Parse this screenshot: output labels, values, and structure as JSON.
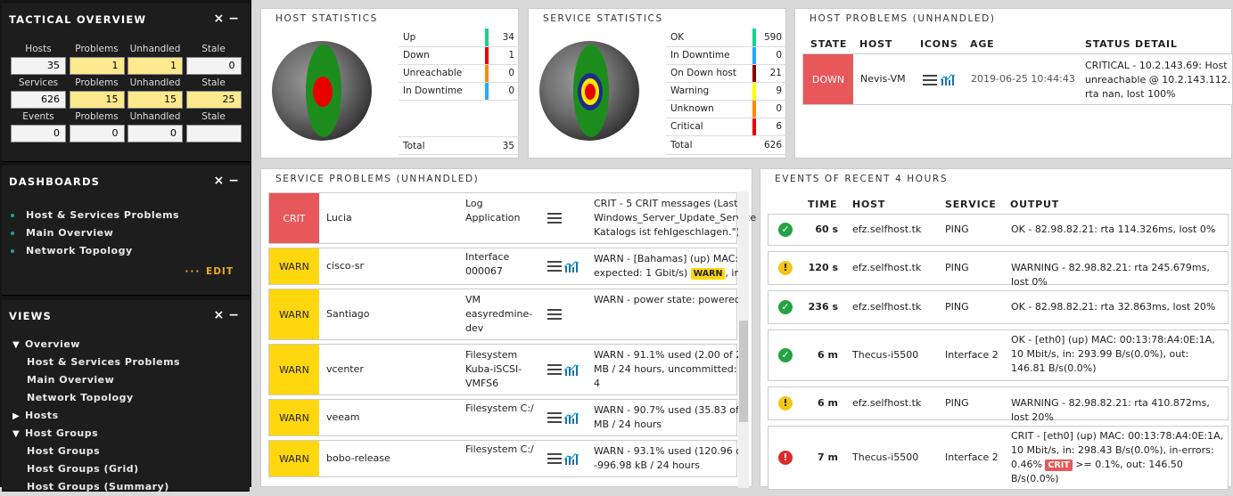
{
  "tactical": {
    "title": "TACTICAL OVERVIEW",
    "rows": [
      {
        "headers": [
          "Hosts",
          "Problems",
          "Unhandled",
          "Stale"
        ],
        "values": [
          "35",
          "1",
          "1",
          "0"
        ]
      },
      {
        "headers": [
          "Services",
          "Problems",
          "Unhandled",
          "Stale"
        ],
        "values": [
          "626",
          "15",
          "15",
          "25"
        ]
      },
      {
        "headers": [
          "Events",
          "Problems",
          "Unhandled",
          "Stale"
        ],
        "values": [
          "0",
          "0",
          "0",
          ""
        ]
      }
    ]
  },
  "dashboards": {
    "title": "DASHBOARDS",
    "items": [
      "Host & Services Problems",
      "Main Overview",
      "Network Topology"
    ],
    "edit": "EDIT"
  },
  "views": {
    "title": "VIEWS",
    "tree": [
      {
        "label": "Overview",
        "arrow": "▼",
        "indent": false
      },
      {
        "label": "Host & Services Problems",
        "arrow": "",
        "indent": true
      },
      {
        "label": "Main Overview",
        "arrow": "",
        "indent": true
      },
      {
        "label": "Network Topology",
        "arrow": "",
        "indent": true
      },
      {
        "label": "Hosts",
        "arrow": "▶",
        "indent": false
      },
      {
        "label": "Host Groups",
        "arrow": "▼",
        "indent": false
      },
      {
        "label": "Host Groups",
        "arrow": "",
        "indent": true
      },
      {
        "label": "Host Groups (Grid)",
        "arrow": "",
        "indent": true
      },
      {
        "label": "Host Groups (Summary)",
        "arrow": "",
        "indent": true
      }
    ]
  },
  "snapin_ctrl": {
    "close": "×",
    "minimize": "−"
  },
  "host_stats": {
    "title": "HOST STATISTICS",
    "rows": [
      {
        "label": "Up",
        "value": "34",
        "color": "#13d389"
      },
      {
        "label": "Down",
        "value": "1",
        "color": "#e80000"
      },
      {
        "label": "Unreachable",
        "value": "0",
        "color": "#ff8800"
      },
      {
        "label": "In Downtime",
        "value": "0",
        "color": "#23aaff"
      }
    ],
    "total_label": "Total",
    "total": "35"
  },
  "service_stats": {
    "title": "SERVICE STATISTICS",
    "rows": [
      {
        "label": "OK",
        "value": "590",
        "color": "#13d389"
      },
      {
        "label": "In Downtime",
        "value": "0",
        "color": "#23aaff"
      },
      {
        "label": "On Down host",
        "value": "21",
        "color": "#880000"
      },
      {
        "label": "Warning",
        "value": "9",
        "color": "#ffff00"
      },
      {
        "label": "Unknown",
        "value": "0",
        "color": "#ff8800"
      },
      {
        "label": "Critical",
        "value": "6",
        "color": "#e80000"
      }
    ],
    "total_label": "Total",
    "total": "626"
  },
  "host_problems": {
    "title": "HOST PROBLEMS (UNHANDLED)",
    "headers": [
      "STATE",
      "HOST",
      "ICONS",
      "AGE",
      "STATUS DETAIL"
    ],
    "rows": [
      {
        "state": "DOWN",
        "host": "Nevis-VM",
        "age": "2019-06-25 10:44:43",
        "detail": "CRITICAL - 10.2.143.69: Host unreachable @ 10.2.143.112. rta nan, lost 100%"
      }
    ]
  },
  "service_problems": {
    "title": "SERVICE PROBLEMS (UNHANDLED)",
    "rows": [
      {
        "state": "CRIT",
        "host": "Lucia",
        "service": "Log Application",
        "graph": false,
        "output": "CRIT - 5 CRIT messages (Last: Windows_Server_Update_Service Katalogs ist fehlgeschlagen.\")",
        "badge": ""
      },
      {
        "state": "WARN",
        "host": "cisco-sr",
        "service": "Interface 000067",
        "graph": true,
        "output": "WARN - [Bahamas] (up) MAC: expected: 1 Gbit/s)",
        "badge": "WARN",
        "tail": ", in"
      },
      {
        "state": "WARN",
        "host": "Santiago",
        "service": "VM easyredmine-dev",
        "graph": false,
        "output": "WARN - power state: powered",
        "badge": ""
      },
      {
        "state": "WARN",
        "host": "vcenter",
        "service": "Filesystem Kuba-iSCSI-VMFS6",
        "graph": true,
        "output": "WARN - 91.1% used (2.00 of 2 MB / 24 hours, uncommitted: 4",
        "badge": ""
      },
      {
        "state": "WARN",
        "host": "veeam",
        "service": "Filesystem C:/",
        "graph": true,
        "output": "WARN - 90.7% used (35.83 of MB / 24 hours",
        "badge": ""
      },
      {
        "state": "WARN",
        "host": "bobo-release",
        "service": "Filesystem C:/",
        "graph": true,
        "output": "WARN - 93.1% used (120.96 o -996.98 kB / 24 hours",
        "badge": ""
      }
    ]
  },
  "events": {
    "title": "EVENTS OF RECENT 4 HOURS",
    "headers": [
      "TIME",
      "HOST",
      "SERVICE",
      "OUTPUT"
    ],
    "rows": [
      {
        "status": "ok",
        "time": "60 s",
        "host": "efz.selfhost.tk",
        "service": "PING",
        "output": "OK - 82.98.82.21: rta 114.326ms, lost 0%"
      },
      {
        "status": "warn",
        "time": "120 s",
        "host": "efz.selfhost.tk",
        "service": "PING",
        "output": "WARNING - 82.98.82.21: rta 245.679ms, lost 0%"
      },
      {
        "status": "ok",
        "time": "236 s",
        "host": "efz.selfhost.tk",
        "service": "PING",
        "output": "OK - 82.98.82.21: rta 32.863ms, lost 20%"
      },
      {
        "status": "ok",
        "time": "6 m",
        "host": "Thecus-i5500",
        "service": "Interface 2",
        "output": "OK - [eth0] (up) MAC: 00:13:78:A4:0E:1A, 10 Mbit/s, in: 293.99 B/s(0.0%), out: 146.81 B/s(0.0%)"
      },
      {
        "status": "warn",
        "time": "6 m",
        "host": "efz.selfhost.tk",
        "service": "PING",
        "output": "WARNING - 82.98.82.21: rta 410.872ms, lost 20%"
      },
      {
        "status": "crit",
        "time": "7 m",
        "host": "Thecus-i5500",
        "service": "Interface 2",
        "output": "CRIT - [eth0] (up) MAC: 00:13:78:A4:0E:1A, 10 Mbit/s, in: 298.43 B/s(0.0%), in-errors: 0.46%",
        "badge": "CRIT",
        "tail": ">= 0.1%, out: 146.50 B/s(0.0%)"
      }
    ]
  }
}
